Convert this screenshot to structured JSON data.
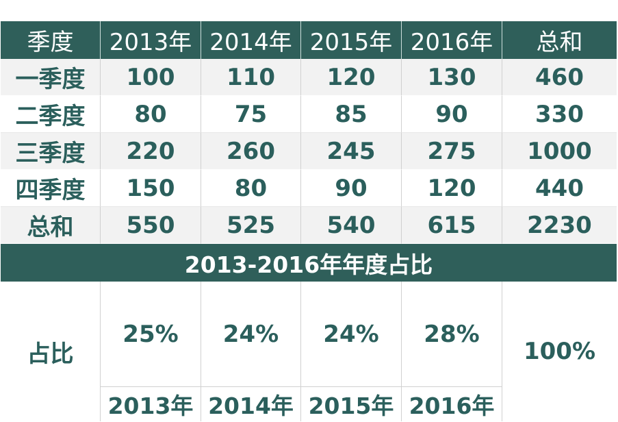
{
  "table": {
    "header": [
      "季度",
      "2013年",
      "2014年",
      "2015年",
      "2016年",
      "总和"
    ],
    "rows": [
      [
        "一季度",
        "100",
        "110",
        "120",
        "130",
        "460"
      ],
      [
        "二季度",
        "80",
        "75",
        "85",
        "90",
        "330"
      ],
      [
        "三季度",
        "220",
        "260",
        "245",
        "275",
        "1000"
      ],
      [
        "四季度",
        "150",
        "80",
        "90",
        "120",
        "440"
      ],
      [
        "总和",
        "550",
        "525",
        "540",
        "615",
        "2230"
      ]
    ]
  },
  "share": {
    "title": "2013-2016年年度占比",
    "label": "占比",
    "percents": [
      "25%",
      "24%",
      "24%",
      "28%"
    ],
    "total": "100%",
    "years": [
      "2013年",
      "2014年",
      "2015年",
      "2016年"
    ]
  },
  "colors": {
    "header_bg": "#2f5f5a",
    "text": "#2b5f5c",
    "stripe": "#f2f2f2"
  }
}
